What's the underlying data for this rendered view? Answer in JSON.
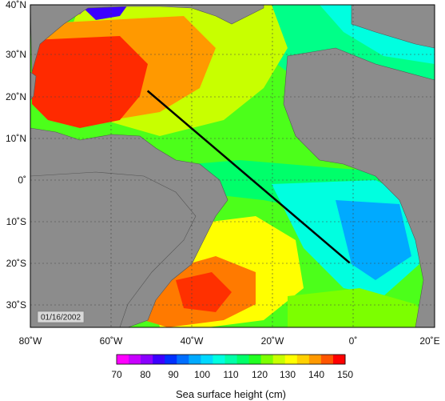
{
  "map": {
    "date_stamp": "01/16/2002",
    "longitude_ticks": [
      "80˚W",
      "60˚W",
      "40˚W",
      "20˚W",
      "0˚",
      "20˚E"
    ],
    "latitude_ticks": [
      "40˚N",
      "30˚N",
      "20˚N",
      "10˚N",
      "0˚",
      "10˚S",
      "20˚S",
      "30˚S"
    ],
    "lon_range": [
      -80,
      20
    ],
    "lat_range": [
      -35,
      40
    ],
    "grid": true,
    "land_color": "#8c8c8c",
    "section_line": {
      "from": {
        "lon": -51,
        "lat": 20
      },
      "to": {
        "lon": -1,
        "lat": -20
      },
      "color": "#000000"
    }
  },
  "colorbar": {
    "title": "Sea surface height (cm)",
    "labels": [
      "70",
      "80",
      "90",
      "100",
      "110",
      "120",
      "130",
      "140",
      "150"
    ],
    "range": [
      70,
      150
    ],
    "colors": [
      "#ff00ff",
      "#c800ff",
      "#8a00ff",
      "#3c00ff",
      "#0030ff",
      "#006eff",
      "#00aaff",
      "#00d8ff",
      "#00ffe0",
      "#00ffa8",
      "#00ff6a",
      "#22ff22",
      "#7cff00",
      "#c8ff00",
      "#ffff00",
      "#ffd000",
      "#ff9900",
      "#ff5500",
      "#ff0000"
    ]
  }
}
